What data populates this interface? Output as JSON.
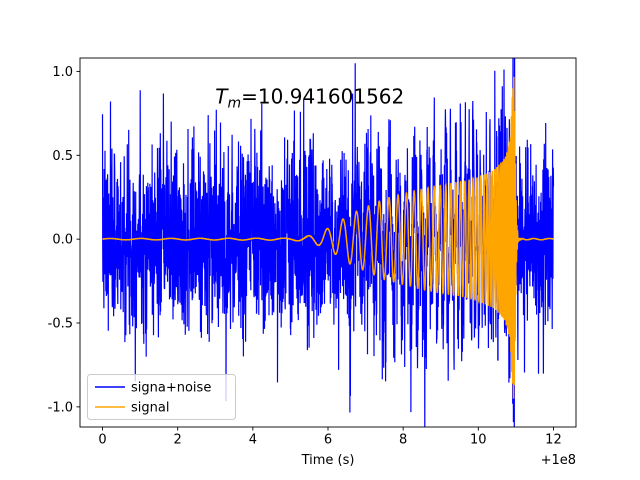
{
  "chart_data": {
    "type": "line",
    "title": "",
    "xlabel": "Time (s)",
    "ylabel": "",
    "x_offset_label": "+1e8",
    "x_ticks": [
      0,
      2,
      4,
      6,
      8,
      10,
      12
    ],
    "y_ticks": [
      -1.0,
      -0.5,
      0.0,
      0.5,
      1.0
    ],
    "xlim": [
      -0.6,
      12.6
    ],
    "ylim": [
      -1.12,
      1.08
    ],
    "x_range": [
      0,
      12
    ],
    "grid": false,
    "annotation": {
      "var": "T",
      "sub": "m",
      "value": "=10.941601562",
      "merger_time": 10.941601562,
      "x_data": 3.0,
      "y_data": 0.81
    },
    "legend": {
      "position": "lower left",
      "entries": [
        {
          "label": "signa+noise",
          "color": "#0000ff"
        },
        {
          "label": "signal",
          "color": "#ffa500"
        }
      ]
    },
    "series": [
      {
        "name": "signa+noise",
        "color": "#0000ff",
        "composition": "signal_plus_noise",
        "noise_sigma": 0.27,
        "n_points": 2600,
        "seed": 7
      },
      {
        "name": "signal",
        "color": "#ffa500",
        "composition": "signal",
        "n_points": 6000
      }
    ],
    "signal_model": {
      "description": "chirp burst: amplitude envelope grows toward merger time then cuts off",
      "envelope_points": [
        [
          0,
          0.004
        ],
        [
          5.0,
          0.006
        ],
        [
          5.4,
          0.015
        ],
        [
          5.8,
          0.04
        ],
        [
          6.2,
          0.09
        ],
        [
          6.6,
          0.15
        ],
        [
          7.0,
          0.19
        ],
        [
          7.5,
          0.24
        ],
        [
          8.0,
          0.27
        ],
        [
          8.5,
          0.3
        ],
        [
          9.0,
          0.32
        ],
        [
          9.5,
          0.34
        ],
        [
          10.0,
          0.37
        ],
        [
          10.4,
          0.41
        ],
        [
          10.7,
          0.48
        ],
        [
          10.85,
          0.6
        ],
        [
          10.92,
          0.92
        ],
        [
          10.945,
          1.0
        ],
        [
          10.965,
          0.8
        ],
        [
          10.99,
          0.4
        ],
        [
          11.02,
          0.1
        ],
        [
          11.06,
          0.01
        ],
        [
          11.12,
          0.004
        ],
        [
          12,
          0.004
        ]
      ],
      "frequency_points": [
        [
          0,
          1.2
        ],
        [
          5.0,
          1.4
        ],
        [
          6.0,
          2.2
        ],
        [
          7.0,
          3.2
        ],
        [
          8.0,
          4.5
        ],
        [
          9.0,
          6.5
        ],
        [
          10.0,
          10
        ],
        [
          10.5,
          17
        ],
        [
          10.8,
          30
        ],
        [
          10.94,
          50
        ],
        [
          11.05,
          50
        ],
        [
          11.2,
          3
        ],
        [
          12,
          2
        ]
      ]
    }
  }
}
